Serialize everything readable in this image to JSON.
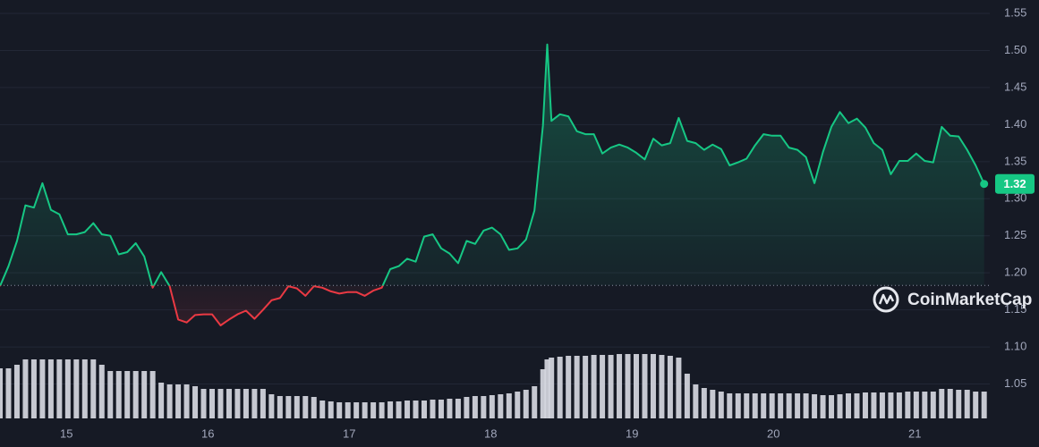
{
  "chart_data": {
    "type": "line",
    "x": [
      14.53,
      14.59,
      14.65,
      14.71,
      14.77,
      14.83,
      14.89,
      14.95,
      15.01,
      15.07,
      15.13,
      15.19,
      15.25,
      15.31,
      15.37,
      15.43,
      15.49,
      15.55,
      15.61,
      15.67,
      15.73,
      15.79,
      15.85,
      15.91,
      15.97,
      16.03,
      16.09,
      16.15,
      16.21,
      16.27,
      16.33,
      16.39,
      16.45,
      16.51,
      16.57,
      16.63,
      16.69,
      16.75,
      16.81,
      16.87,
      16.93,
      16.99,
      17.05,
      17.11,
      17.17,
      17.23,
      17.29,
      17.35,
      17.41,
      17.47,
      17.53,
      17.59,
      17.65,
      17.71,
      17.77,
      17.83,
      17.89,
      17.95,
      18.01,
      18.07,
      18.13,
      18.19,
      18.25,
      18.31,
      18.37,
      18.4,
      18.43,
      18.49,
      18.55,
      18.61,
      18.67,
      18.73,
      18.79,
      18.85,
      18.91,
      18.97,
      19.03,
      19.09,
      19.15,
      19.21,
      19.27,
      19.33,
      19.39,
      19.45,
      19.51,
      19.57,
      19.63,
      19.69,
      19.75,
      19.81,
      19.87,
      19.93,
      19.99,
      20.05,
      20.11,
      20.17,
      20.23,
      20.29,
      20.35,
      20.41,
      20.47,
      20.53,
      20.59,
      20.65,
      20.71,
      20.77,
      20.83,
      20.89,
      20.95,
      21.01,
      21.07,
      21.13,
      21.19,
      21.25,
      21.31,
      21.37,
      21.43,
      21.49
    ],
    "values": [
      1.182,
      1.209,
      1.243,
      1.291,
      1.288,
      1.321,
      1.285,
      1.279,
      1.252,
      1.252,
      1.255,
      1.267,
      1.252,
      1.25,
      1.225,
      1.228,
      1.24,
      1.222,
      1.18,
      1.201,
      1.182,
      1.137,
      1.133,
      1.143,
      1.144,
      1.144,
      1.129,
      1.137,
      1.144,
      1.149,
      1.138,
      1.15,
      1.163,
      1.166,
      1.182,
      1.179,
      1.169,
      1.182,
      1.18,
      1.175,
      1.172,
      1.174,
      1.174,
      1.169,
      1.176,
      1.18,
      1.205,
      1.209,
      1.219,
      1.215,
      1.249,
      1.252,
      1.233,
      1.226,
      1.213,
      1.243,
      1.239,
      1.257,
      1.261,
      1.252,
      1.231,
      1.233,
      1.245,
      1.284,
      1.399,
      1.508,
      1.405,
      1.414,
      1.411,
      1.391,
      1.387,
      1.387,
      1.361,
      1.369,
      1.373,
      1.369,
      1.362,
      1.353,
      1.381,
      1.372,
      1.375,
      1.409,
      1.378,
      1.375,
      1.366,
      1.373,
      1.367,
      1.345,
      1.349,
      1.354,
      1.372,
      1.387,
      1.385,
      1.385,
      1.369,
      1.366,
      1.356,
      1.321,
      1.363,
      1.397,
      1.417,
      1.402,
      1.408,
      1.396,
      1.375,
      1.366,
      1.333,
      1.351,
      1.351,
      1.361,
      1.351,
      1.349,
      1.397,
      1.385,
      1.384,
      1.366,
      1.345,
      1.32
    ],
    "volume": [
      56,
      56,
      60,
      66,
      66,
      66,
      66,
      66,
      66,
      66,
      66,
      66,
      60,
      53,
      53,
      53,
      53,
      53,
      53,
      40,
      38,
      38,
      38,
      36,
      33,
      33,
      33,
      33,
      33,
      33,
      33,
      33,
      27,
      25,
      25,
      25,
      25,
      24,
      20,
      19,
      18,
      18,
      18,
      18,
      18,
      18,
      19,
      19,
      20,
      20,
      20,
      21,
      21,
      22,
      22,
      24,
      25,
      25,
      26,
      27,
      28,
      30,
      32,
      36,
      55,
      66,
      68,
      69,
      70,
      70,
      70,
      71,
      71,
      71,
      72,
      72,
      72,
      72,
      72,
      71,
      70,
      68,
      50,
      38,
      34,
      32,
      30,
      28,
      28,
      28,
      28,
      28,
      28,
      28,
      28,
      28,
      28,
      27,
      26,
      26,
      27,
      28,
      28,
      29,
      29,
      29,
      29,
      29,
      30,
      30,
      30,
      30,
      33,
      33,
      32,
      32,
      30,
      30
    ],
    "baseline": 1.183,
    "current_price": "1.32",
    "up_color": "#16c784",
    "down_color": "#ea3943",
    "volume_color": "#d9dce4",
    "xlim": [
      14.53,
      21.53
    ],
    "xticks": [
      15,
      16,
      17,
      18,
      19,
      20,
      21
    ],
    "ylim": [
      1.0,
      1.55
    ],
    "yticks": [
      1.05,
      {
        "value": 1.1,
        "label": "1.10"
      },
      1.15,
      {
        "value": 1.2,
        "label": "1.20"
      },
      1.25,
      {
        "value": 1.3,
        "label": "1.30"
      },
      1.35,
      {
        "value": 1.4,
        "label": "1.40"
      },
      1.45,
      {
        "value": 1.5,
        "label": "1.50"
      },
      1.55
    ],
    "grid": true,
    "watermark": "CoinMarketCap"
  }
}
